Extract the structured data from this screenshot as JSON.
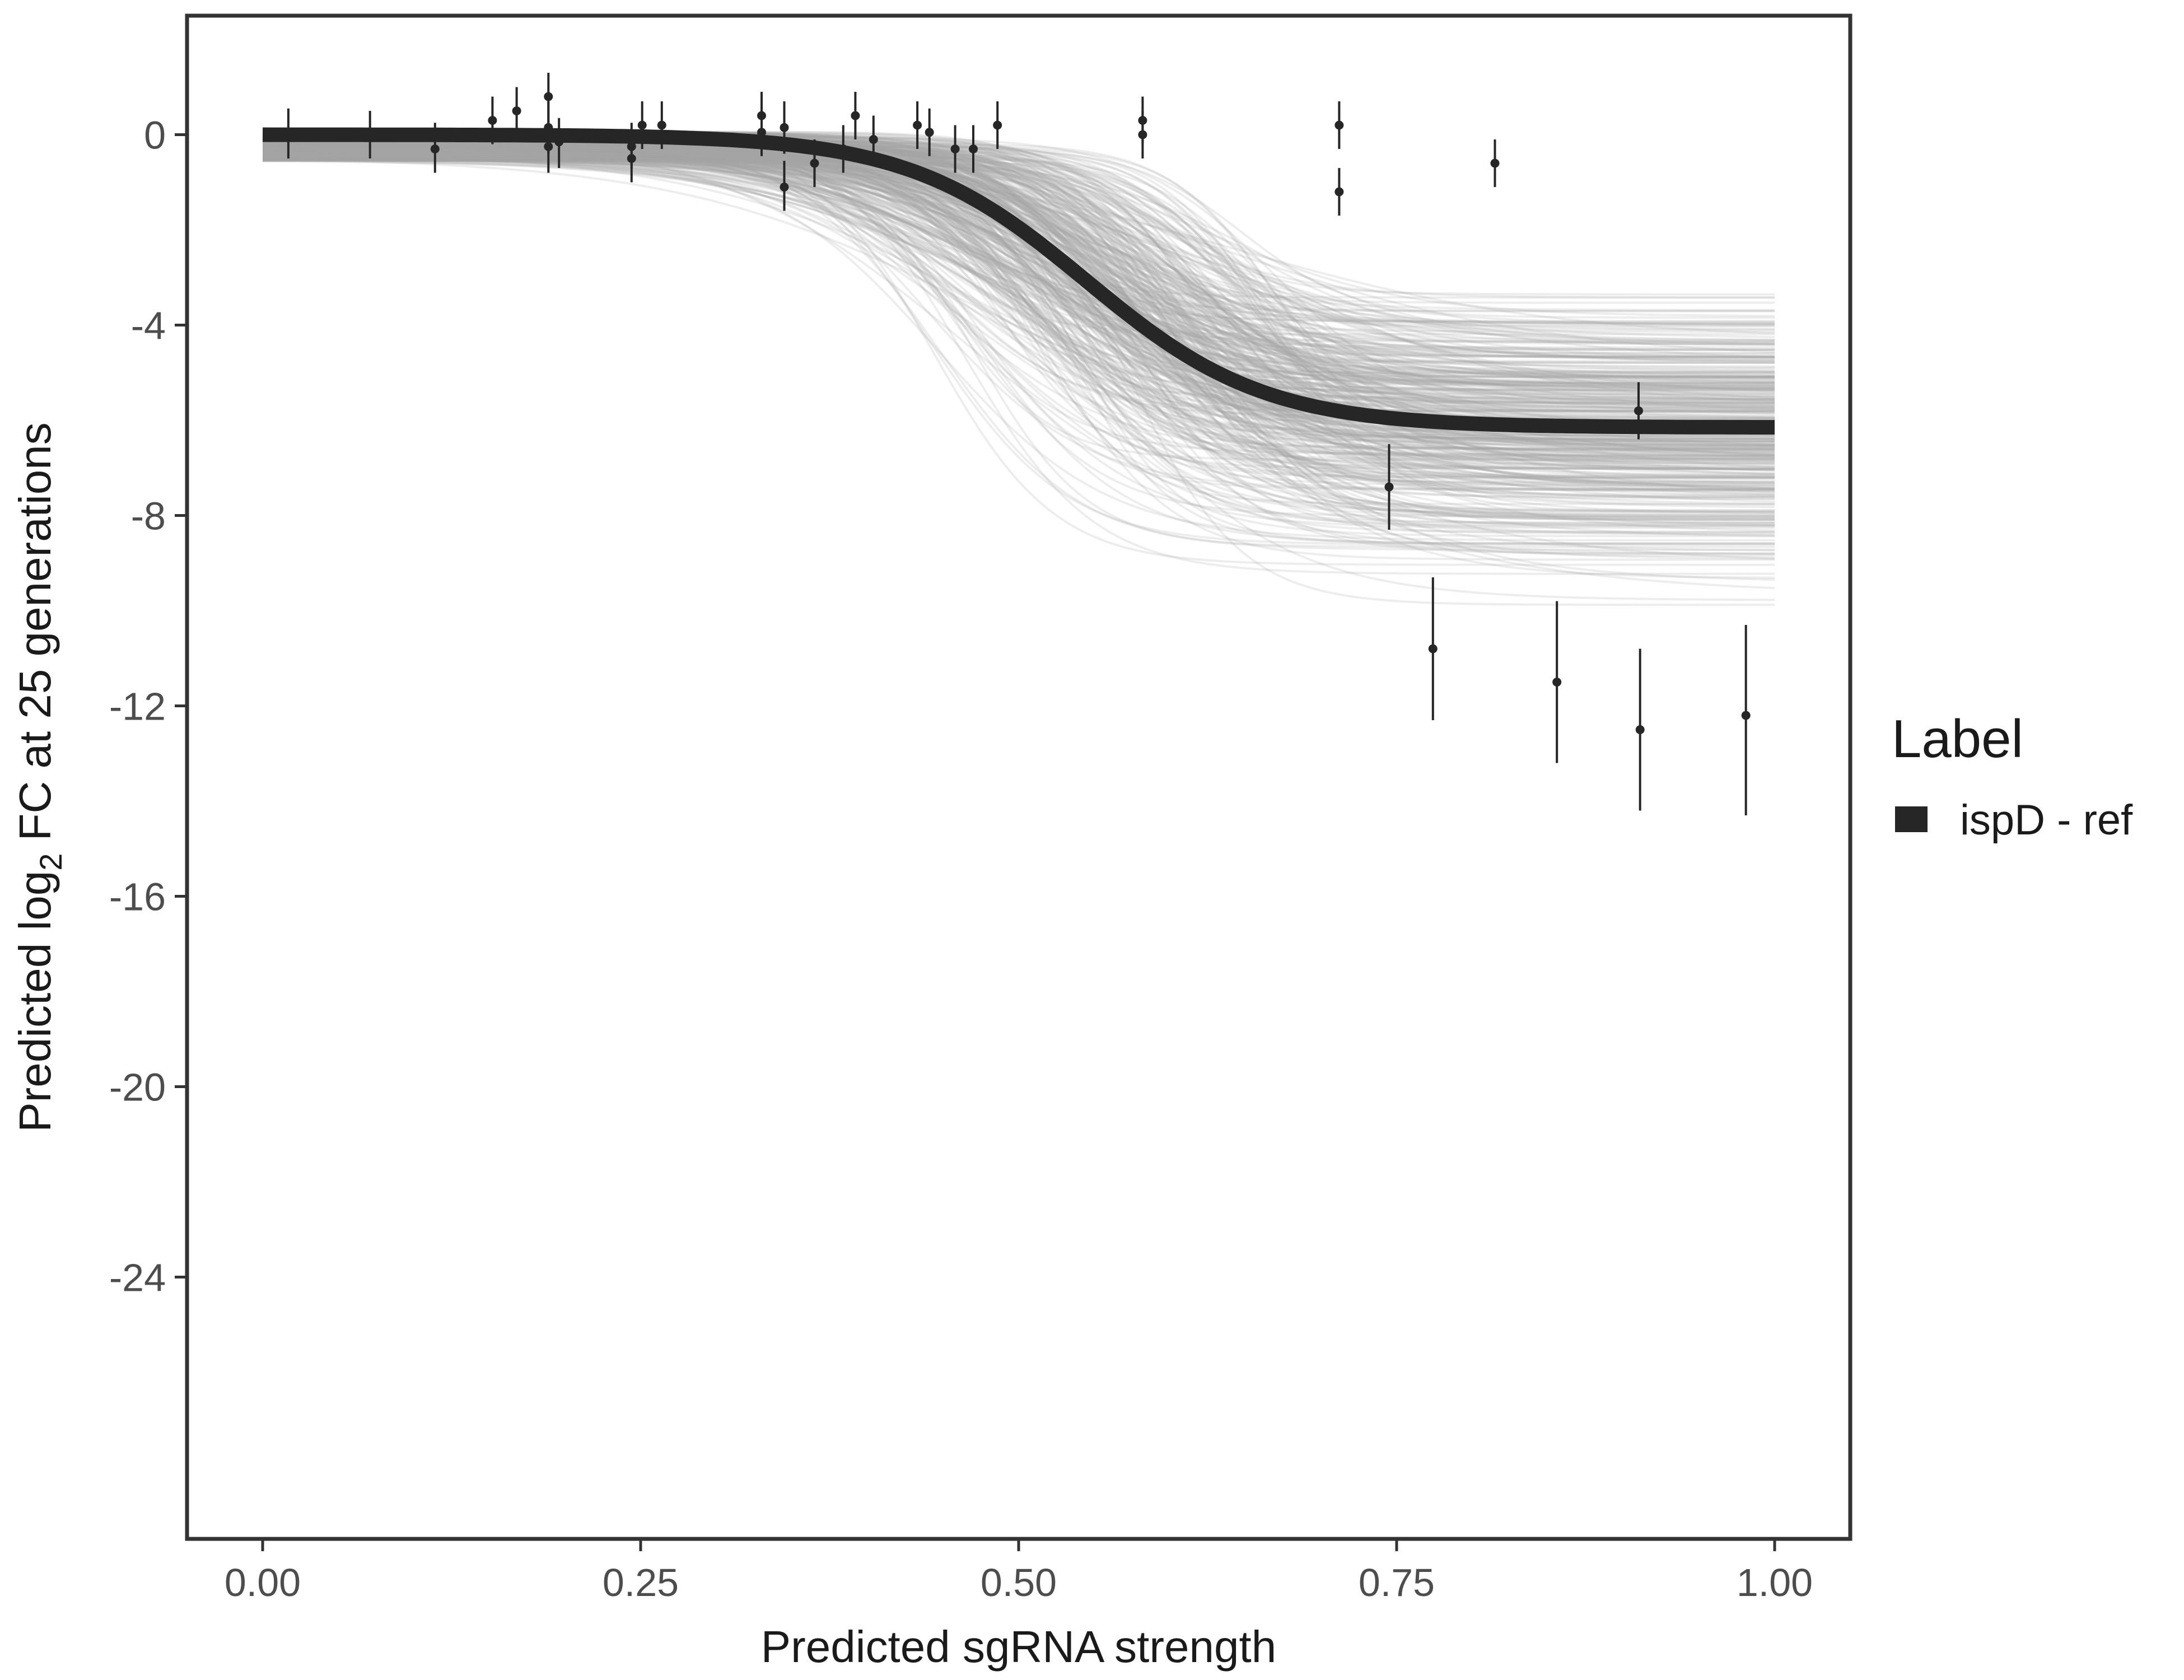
{
  "chart_data": {
    "type": "line",
    "xlabel": "Predicted sgRNA strength",
    "ylabel_prefix": "Predicted  log",
    "ylabel_subscript": "2",
    "ylabel_suffix": " FC at 25 generations",
    "xlim": [
      -0.05,
      1.05
    ],
    "ylim": [
      -29.5,
      2.5
    ],
    "x_ticks": [
      0.0,
      0.25,
      0.5,
      0.75,
      1.0
    ],
    "x_tick_labels": [
      "0.00",
      "0.25",
      "0.50",
      "0.75",
      "1.00"
    ],
    "y_ticks": [
      0,
      -4,
      -8,
      -12,
      -16,
      -20,
      -24
    ],
    "y_tick_labels": [
      "0",
      "-4",
      "-8",
      "-12",
      "-16",
      "-20",
      "-24"
    ],
    "grid": false,
    "legend": {
      "title": "Label",
      "placement": "right",
      "entries": [
        {
          "label": "ispD - ref",
          "color": "#262626"
        }
      ]
    },
    "fit_curve": {
      "name": "ispD - ref",
      "color": "#262626",
      "model": "logistic",
      "top": 0.0,
      "bottom": -6.15,
      "midpoint": 0.545,
      "steepness": 17.0
    },
    "posterior_draws": {
      "color": "#a6a6a6",
      "count": 400,
      "top_range": [
        -0.9,
        0.1
      ],
      "bottom_range": [
        -10.3,
        -2.5
      ],
      "midpoint_range": [
        0.42,
        0.68
      ],
      "steepness_range": [
        9,
        30
      ]
    },
    "points": [
      {
        "x": 0.017,
        "y": 0.0,
        "lo": -0.5,
        "hi": 0.55
      },
      {
        "x": 0.071,
        "y": 0.0,
        "lo": -0.5,
        "hi": 0.5
      },
      {
        "x": 0.114,
        "y": -0.3,
        "lo": -0.8,
        "hi": 0.25
      },
      {
        "x": 0.152,
        "y": 0.3,
        "lo": -0.2,
        "hi": 0.8
      },
      {
        "x": 0.168,
        "y": 0.5,
        "lo": 0.0,
        "hi": 1.0
      },
      {
        "x": 0.189,
        "y": 0.8,
        "lo": 0.3,
        "hi": 1.3
      },
      {
        "x": 0.189,
        "y": 0.15,
        "lo": -0.4,
        "hi": 0.7
      },
      {
        "x": 0.189,
        "y": -0.25,
        "lo": -0.8,
        "hi": 0.3
      },
      {
        "x": 0.196,
        "y": -0.15,
        "lo": -0.7,
        "hi": 0.35
      },
      {
        "x": 0.244,
        "y": -0.25,
        "lo": -0.7,
        "hi": 0.25
      },
      {
        "x": 0.244,
        "y": -0.5,
        "lo": -1.0,
        "hi": 0.0
      },
      {
        "x": 0.251,
        "y": 0.2,
        "lo": -0.3,
        "hi": 0.7
      },
      {
        "x": 0.264,
        "y": 0.2,
        "lo": -0.3,
        "hi": 0.7
      },
      {
        "x": 0.33,
        "y": 0.05,
        "lo": -0.45,
        "hi": 0.55
      },
      {
        "x": 0.33,
        "y": 0.4,
        "lo": -0.1,
        "hi": 0.9
      },
      {
        "x": 0.345,
        "y": 0.15,
        "lo": -0.4,
        "hi": 0.7
      },
      {
        "x": 0.345,
        "y": -1.1,
        "lo": -1.6,
        "hi": -0.55
      },
      {
        "x": 0.365,
        "y": -0.6,
        "lo": -1.1,
        "hi": -0.1
      },
      {
        "x": 0.384,
        "y": -0.3,
        "lo": -0.8,
        "hi": 0.2
      },
      {
        "x": 0.392,
        "y": 0.4,
        "lo": -0.1,
        "hi": 0.9
      },
      {
        "x": 0.404,
        "y": -0.1,
        "lo": -0.6,
        "hi": 0.4
      },
      {
        "x": 0.433,
        "y": 0.2,
        "lo": -0.3,
        "hi": 0.7
      },
      {
        "x": 0.441,
        "y": 0.05,
        "lo": -0.45,
        "hi": 0.55
      },
      {
        "x": 0.458,
        "y": -0.3,
        "lo": -0.8,
        "hi": 0.2
      },
      {
        "x": 0.47,
        "y": -0.3,
        "lo": -0.8,
        "hi": 0.2
      },
      {
        "x": 0.486,
        "y": 0.2,
        "lo": -0.3,
        "hi": 0.7
      },
      {
        "x": 0.582,
        "y": 0.3,
        "lo": -0.2,
        "hi": 0.8
      },
      {
        "x": 0.582,
        "y": 0.0,
        "lo": -0.5,
        "hi": 0.5
      },
      {
        "x": 0.712,
        "y": 0.2,
        "lo": -0.3,
        "hi": 0.7
      },
      {
        "x": 0.712,
        "y": -1.2,
        "lo": -1.7,
        "hi": -0.7
      },
      {
        "x": 0.745,
        "y": -7.4,
        "lo": -8.3,
        "hi": -6.5
      },
      {
        "x": 0.774,
        "y": -10.8,
        "lo": -12.3,
        "hi": -9.3
      },
      {
        "x": 0.815,
        "y": -0.6,
        "lo": -1.1,
        "hi": -0.1
      },
      {
        "x": 0.856,
        "y": -11.5,
        "lo": -13.2,
        "hi": -9.8
      },
      {
        "x": 0.91,
        "y": -5.8,
        "lo": -6.4,
        "hi": -5.2
      },
      {
        "x": 0.911,
        "y": -12.5,
        "lo": -14.2,
        "hi": -10.8
      },
      {
        "x": 0.981,
        "y": -12.2,
        "lo": -14.3,
        "hi": -10.3
      }
    ]
  }
}
